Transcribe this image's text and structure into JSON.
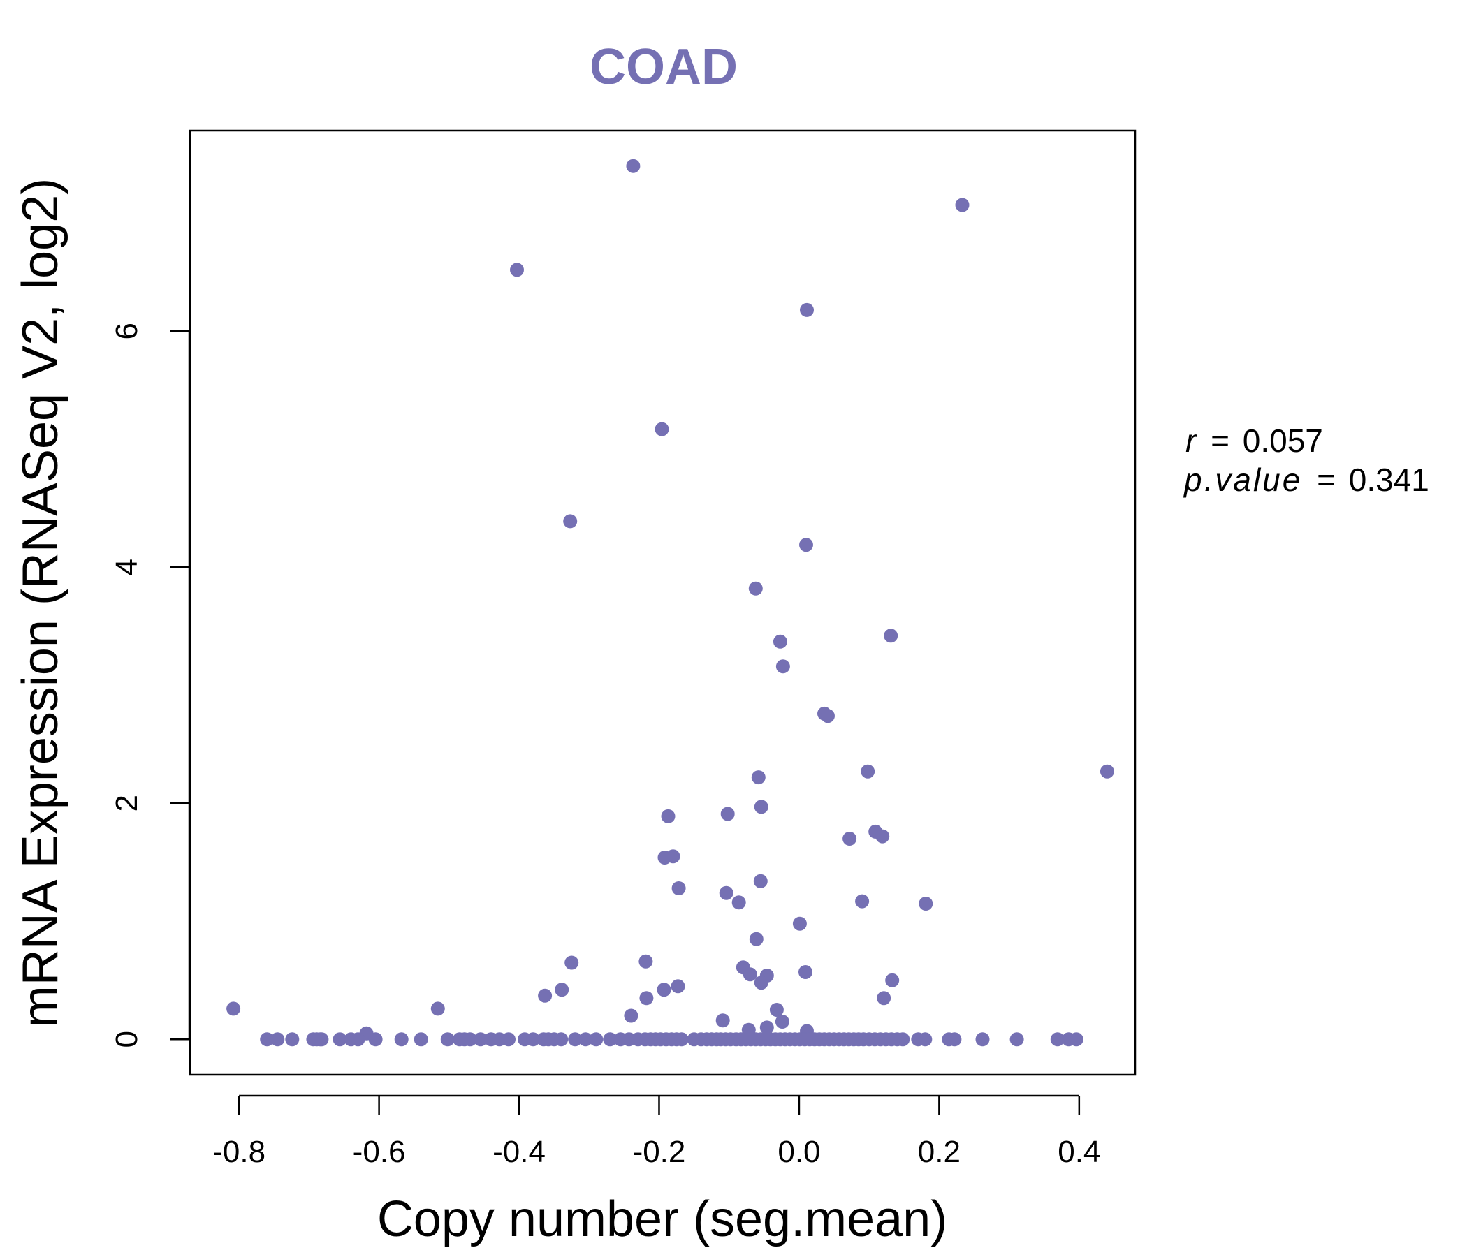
{
  "colors": {
    "point": "#7570b3",
    "title": "#7570b3",
    "axis": "#000000",
    "background": "#ffffff"
  },
  "stats": {
    "r_label": "r",
    "r_value": "0.057",
    "p_label": "p.value",
    "p_value": "0.341",
    "equals": "="
  },
  "chart_data": {
    "type": "scatter",
    "title": "COAD",
    "xlabel": "Copy number (seg.mean)",
    "ylabel": "mRNA Expression (RNASeq V2, log2)",
    "xlim": [
      -0.87,
      0.48
    ],
    "ylim": [
      -0.3,
      7.7
    ],
    "xticks": [
      -0.8,
      -0.6,
      -0.4,
      -0.2,
      0.0,
      0.2,
      0.4
    ],
    "xtick_labels": [
      "-0.8",
      "-0.6",
      "-0.4",
      "-0.2",
      "0.0",
      "0.2",
      "0.4"
    ],
    "yticks": [
      0,
      2,
      4,
      6
    ],
    "ytick_labels": [
      "0",
      "2",
      "4",
      "6"
    ],
    "grid": false,
    "points": [
      [
        -0.237,
        7.4
      ],
      [
        0.233,
        7.07
      ],
      [
        -0.403,
        6.52
      ],
      [
        0.011,
        6.18
      ],
      [
        -0.196,
        5.17
      ],
      [
        -0.327,
        4.39
      ],
      [
        0.01,
        4.19
      ],
      [
        -0.062,
        3.82
      ],
      [
        0.131,
        3.42
      ],
      [
        -0.027,
        3.37
      ],
      [
        -0.023,
        3.16
      ],
      [
        0.036,
        2.76
      ],
      [
        0.041,
        2.74
      ],
      [
        0.44,
        2.27
      ],
      [
        0.098,
        2.27
      ],
      [
        -0.058,
        2.22
      ],
      [
        -0.054,
        1.97
      ],
      [
        -0.187,
        1.89
      ],
      [
        -0.102,
        1.91
      ],
      [
        0.072,
        1.7
      ],
      [
        0.109,
        1.76
      ],
      [
        0.119,
        1.72
      ],
      [
        -0.192,
        1.54
      ],
      [
        -0.18,
        1.55
      ],
      [
        -0.055,
        1.34
      ],
      [
        -0.172,
        1.28
      ],
      [
        -0.104,
        1.24
      ],
      [
        -0.086,
        1.16
      ],
      [
        0.09,
        1.17
      ],
      [
        0.181,
        1.15
      ],
      [
        0.001,
        0.98
      ],
      [
        -0.061,
        0.85
      ],
      [
        -0.325,
        0.65
      ],
      [
        -0.219,
        0.66
      ],
      [
        -0.08,
        0.61
      ],
      [
        -0.07,
        0.55
      ],
      [
        -0.046,
        0.54
      ],
      [
        -0.054,
        0.48
      ],
      [
        0.009,
        0.57
      ],
      [
        0.133,
        0.5
      ],
      [
        -0.339,
        0.42
      ],
      [
        -0.363,
        0.37
      ],
      [
        -0.193,
        0.42
      ],
      [
        -0.173,
        0.45
      ],
      [
        -0.218,
        0.35
      ],
      [
        0.121,
        0.35
      ],
      [
        -0.808,
        0.26
      ],
      [
        -0.516,
        0.26
      ],
      [
        -0.24,
        0.2
      ],
      [
        -0.032,
        0.25
      ],
      [
        -0.109,
        0.16
      ],
      [
        -0.024,
        0.15
      ],
      [
        -0.046,
        0.1
      ],
      [
        -0.618,
        0.05
      ],
      [
        -0.072,
        0.08
      ],
      [
        0.011,
        0.07
      ],
      [
        -0.76,
        0
      ],
      [
        -0.745,
        0
      ],
      [
        -0.724,
        0
      ],
      [
        -0.694,
        0
      ],
      [
        -0.689,
        0
      ],
      [
        -0.684,
        0
      ],
      [
        -0.682,
        0
      ],
      [
        -0.656,
        0
      ],
      [
        -0.64,
        0
      ],
      [
        -0.63,
        0
      ],
      [
        -0.605,
        0
      ],
      [
        -0.568,
        0
      ],
      [
        -0.54,
        0
      ],
      [
        -0.502,
        0
      ],
      [
        -0.485,
        0
      ],
      [
        -0.478,
        0
      ],
      [
        -0.47,
        0
      ],
      [
        -0.455,
        0
      ],
      [
        -0.44,
        0
      ],
      [
        -0.428,
        0
      ],
      [
        -0.415,
        0
      ],
      [
        -0.392,
        0
      ],
      [
        -0.38,
        0
      ],
      [
        -0.365,
        0
      ],
      [
        -0.358,
        0
      ],
      [
        -0.35,
        0
      ],
      [
        -0.34,
        0
      ],
      [
        -0.32,
        0
      ],
      [
        -0.305,
        0
      ],
      [
        -0.29,
        0
      ],
      [
        -0.27,
        0
      ],
      [
        -0.255,
        0
      ],
      [
        -0.243,
        0
      ],
      [
        -0.23,
        0
      ],
      [
        -0.22,
        0
      ],
      [
        -0.212,
        0
      ],
      [
        -0.205,
        0
      ],
      [
        -0.198,
        0
      ],
      [
        -0.19,
        0
      ],
      [
        -0.182,
        0
      ],
      [
        -0.175,
        0
      ],
      [
        -0.168,
        0
      ],
      [
        -0.15,
        0
      ],
      [
        -0.14,
        0
      ],
      [
        -0.132,
        0
      ],
      [
        -0.125,
        0
      ],
      [
        -0.118,
        0
      ],
      [
        -0.112,
        0
      ],
      [
        -0.105,
        0
      ],
      [
        -0.098,
        0
      ],
      [
        -0.09,
        0
      ],
      [
        -0.083,
        0
      ],
      [
        -0.076,
        0
      ],
      [
        -0.069,
        0
      ],
      [
        -0.062,
        0
      ],
      [
        -0.055,
        0
      ],
      [
        -0.048,
        0
      ],
      [
        -0.041,
        0
      ],
      [
        -0.034,
        0
      ],
      [
        -0.027,
        0
      ],
      [
        -0.02,
        0
      ],
      [
        -0.013,
        0
      ],
      [
        -0.006,
        0
      ],
      [
        0.001,
        0
      ],
      [
        0.008,
        0
      ],
      [
        0.015,
        0
      ],
      [
        0.022,
        0
      ],
      [
        0.029,
        0
      ],
      [
        0.036,
        0
      ],
      [
        0.043,
        0
      ],
      [
        0.05,
        0
      ],
      [
        0.057,
        0
      ],
      [
        0.064,
        0
      ],
      [
        0.071,
        0
      ],
      [
        0.078,
        0
      ],
      [
        0.085,
        0
      ],
      [
        0.092,
        0
      ],
      [
        0.1,
        0
      ],
      [
        0.108,
        0
      ],
      [
        0.116,
        0
      ],
      [
        0.124,
        0
      ],
      [
        0.132,
        0
      ],
      [
        0.14,
        0
      ],
      [
        0.148,
        0
      ],
      [
        0.17,
        0
      ],
      [
        0.18,
        0
      ],
      [
        0.214,
        0
      ],
      [
        0.222,
        0
      ],
      [
        0.262,
        0
      ],
      [
        0.311,
        0
      ],
      [
        0.369,
        0
      ],
      [
        0.385,
        0
      ],
      [
        0.396,
        0
      ]
    ]
  }
}
